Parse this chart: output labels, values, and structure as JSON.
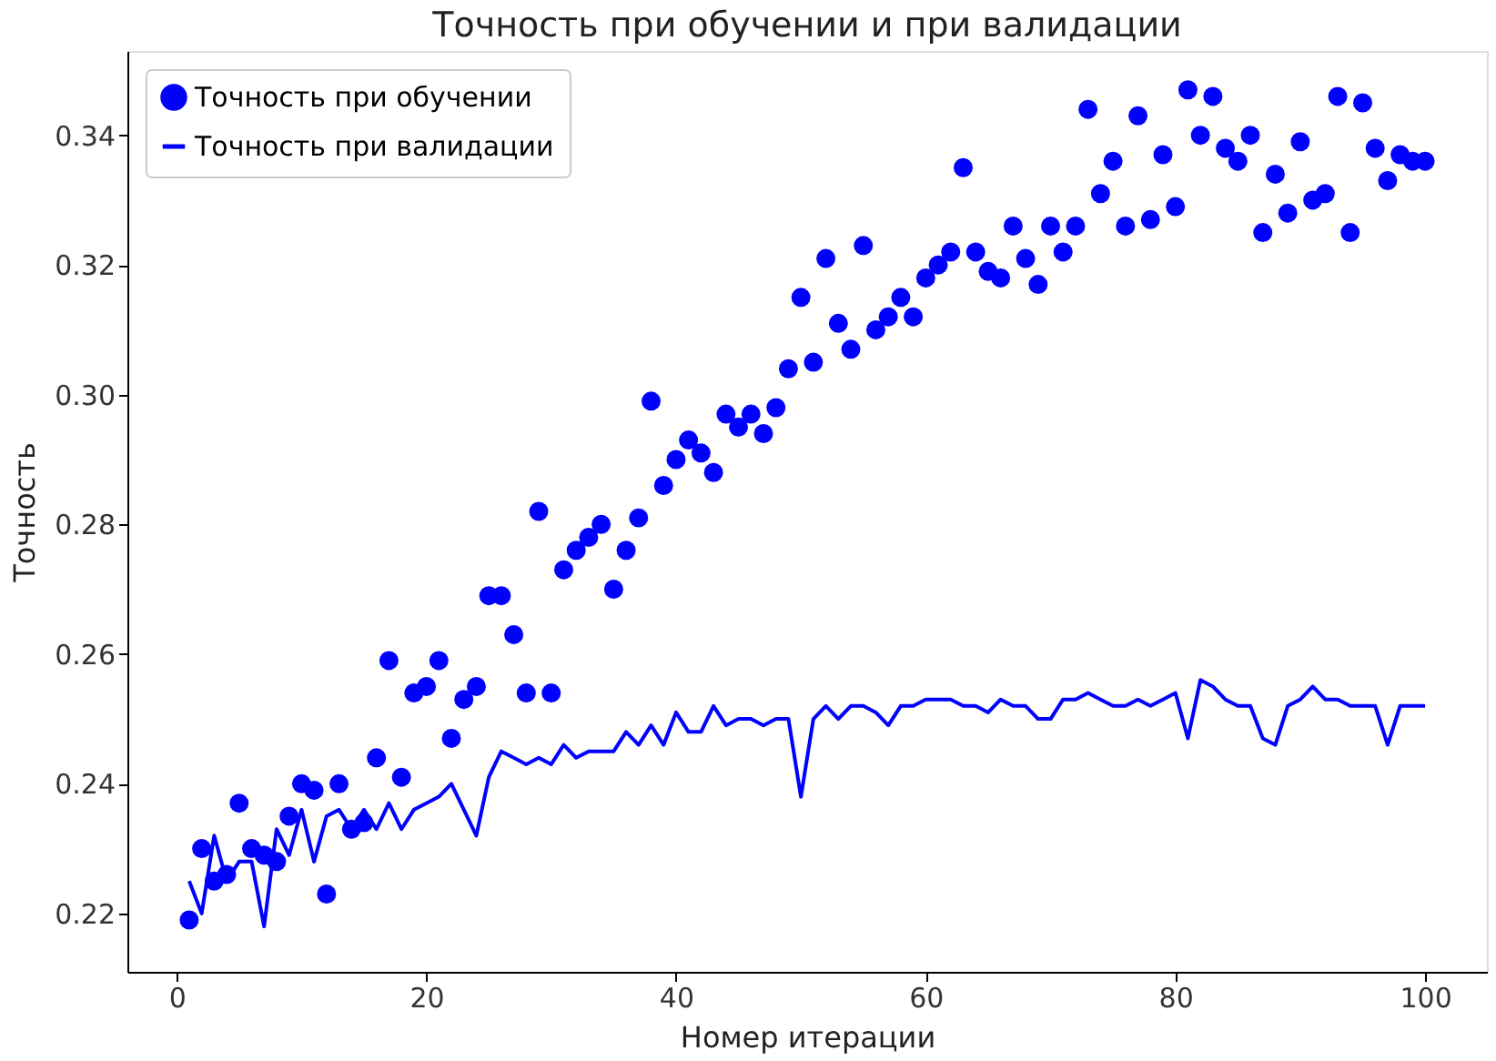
{
  "chart_data": {
    "type": "scatter",
    "title": "Точность при обучении и при валидации",
    "xlabel": "Номер итерации",
    "ylabel": "Точность",
    "x": [
      1,
      2,
      3,
      4,
      5,
      6,
      7,
      8,
      9,
      10,
      11,
      12,
      13,
      14,
      15,
      16,
      17,
      18,
      19,
      20,
      21,
      22,
      23,
      24,
      25,
      26,
      27,
      28,
      29,
      30,
      31,
      32,
      33,
      34,
      35,
      36,
      37,
      38,
      39,
      40,
      41,
      42,
      43,
      44,
      45,
      46,
      47,
      48,
      49,
      50,
      51,
      52,
      53,
      54,
      55,
      56,
      57,
      58,
      59,
      60,
      61,
      62,
      63,
      64,
      65,
      66,
      67,
      68,
      69,
      70,
      71,
      72,
      73,
      74,
      75,
      76,
      77,
      78,
      79,
      80,
      81,
      82,
      83,
      84,
      85,
      86,
      87,
      88,
      89,
      90,
      91,
      92,
      93,
      94,
      95,
      96,
      97,
      98,
      99,
      100
    ],
    "series": [
      {
        "name": "Точность при обучении",
        "marker": "circle",
        "color": "#0000ff",
        "values": [
          0.219,
          0.23,
          0.225,
          0.226,
          0.237,
          0.23,
          0.229,
          0.228,
          0.235,
          0.24,
          0.239,
          0.223,
          0.24,
          0.233,
          0.234,
          0.244,
          0.259,
          0.241,
          0.254,
          0.255,
          0.259,
          0.247,
          0.253,
          0.255,
          0.269,
          0.269,
          0.263,
          0.254,
          0.282,
          0.254,
          0.273,
          0.276,
          0.278,
          0.28,
          0.27,
          0.276,
          0.281,
          0.299,
          0.286,
          0.29,
          0.293,
          0.291,
          0.288,
          0.297,
          0.295,
          0.297,
          0.294,
          0.298,
          0.304,
          0.315,
          0.305,
          0.321,
          0.311,
          0.307,
          0.323,
          0.31,
          0.312,
          0.315,
          0.312,
          0.318,
          0.32,
          0.322,
          0.335,
          0.322,
          0.319,
          0.318,
          0.326,
          0.321,
          0.317,
          0.326,
          0.322,
          0.326,
          0.344,
          0.331,
          0.336,
          0.326,
          0.343,
          0.327,
          0.337,
          0.329,
          0.347,
          0.34,
          0.346,
          0.338,
          0.336,
          0.34,
          0.325,
          0.334,
          0.328,
          0.339,
          0.33,
          0.331,
          0.346,
          0.325,
          0.345,
          0.338,
          0.333,
          0.337,
          0.336,
          0.336
        ]
      },
      {
        "name": "Точность при валидации",
        "type": "line",
        "line_style": "solid",
        "color": "#0000ff",
        "values": [
          0.225,
          0.22,
          0.232,
          0.225,
          0.228,
          0.228,
          0.218,
          0.233,
          0.229,
          0.236,
          0.228,
          0.235,
          0.236,
          0.233,
          0.236,
          0.233,
          0.237,
          0.233,
          0.236,
          0.237,
          0.238,
          0.24,
          0.236,
          0.232,
          0.241,
          0.245,
          0.244,
          0.243,
          0.244,
          0.243,
          0.246,
          0.244,
          0.245,
          0.245,
          0.245,
          0.248,
          0.246,
          0.249,
          0.246,
          0.251,
          0.248,
          0.248,
          0.252,
          0.249,
          0.25,
          0.25,
          0.249,
          0.25,
          0.25,
          0.238,
          0.25,
          0.252,
          0.25,
          0.252,
          0.252,
          0.251,
          0.249,
          0.252,
          0.252,
          0.253,
          0.253,
          0.253,
          0.252,
          0.252,
          0.251,
          0.253,
          0.252,
          0.252,
          0.25,
          0.25,
          0.253,
          0.253,
          0.254,
          0.253,
          0.252,
          0.252,
          0.253,
          0.252,
          0.253,
          0.254,
          0.247,
          0.256,
          0.255,
          0.253,
          0.252,
          0.252,
          0.247,
          0.246,
          0.252,
          0.253,
          0.255,
          0.253,
          0.253,
          0.252,
          0.252,
          0.252,
          0.246,
          0.252,
          0.252,
          0.252
        ]
      }
    ],
    "xlim": [
      -3.95,
      104.95
    ],
    "xticks": [
      0,
      20,
      40,
      60,
      80,
      100
    ],
    "ylim": [
      0.211,
      0.353
    ],
    "yticks": [
      0.22,
      0.24,
      0.26,
      0.28,
      {
        "value": 0.3,
        "label": "0.30"
      },
      0.32,
      0.34
    ],
    "grid": false,
    "legend": "top left"
  }
}
